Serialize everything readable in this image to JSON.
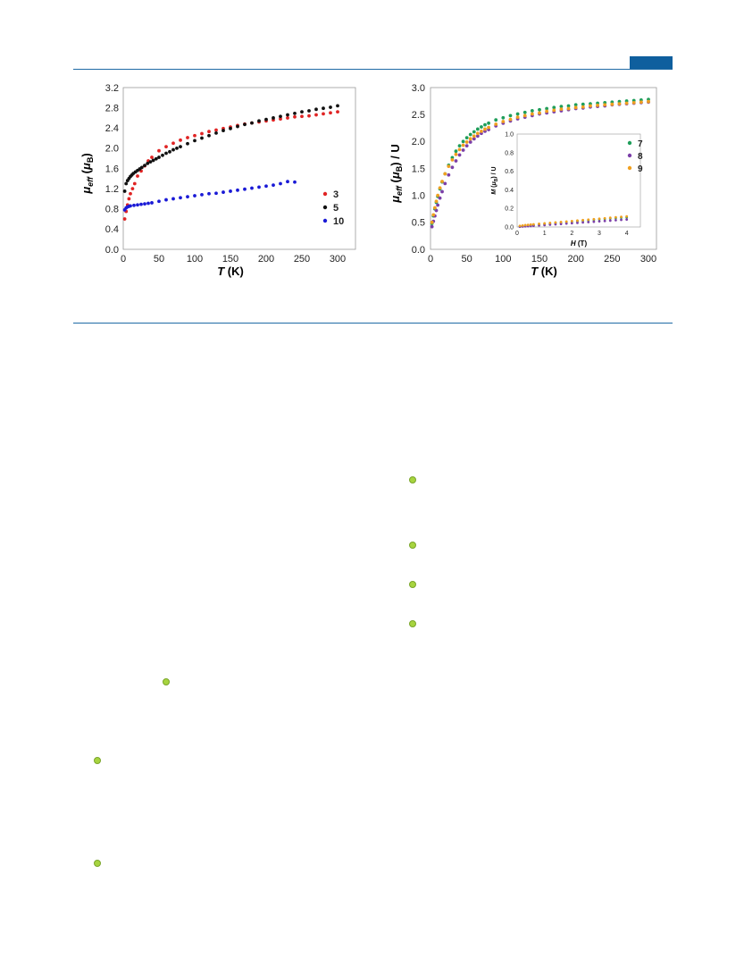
{
  "chart_data": [
    {
      "type": "scatter",
      "xlabel_var": "T",
      "xlabel_unit": "(K)",
      "ylabel_var": "μ",
      "ylabel_sub": "eff",
      "ylabel_unit_open": "(",
      "ylabel_unit_var": "μ",
      "ylabel_unit_sub": "B",
      "ylabel_unit_close": ")",
      "xlim": [
        0,
        300
      ],
      "ylim": [
        0,
        3.2
      ],
      "xticks": [
        "0",
        "50",
        "100",
        "150",
        "200",
        "250",
        "300"
      ],
      "yticks": [
        "0.0",
        "0.4",
        "0.8",
        "1.2",
        "1.6",
        "2.0",
        "2.4",
        "2.8",
        "3.2"
      ],
      "legend_position": "right-middle",
      "series": [
        {
          "name": "3",
          "color": "#e02424",
          "x": [
            2,
            4,
            6,
            8,
            10,
            13,
            16,
            20,
            25,
            30,
            35,
            40,
            50,
            60,
            70,
            80,
            90,
            100,
            110,
            120,
            130,
            140,
            150,
            160,
            170,
            180,
            190,
            200,
            210,
            220,
            230,
            240,
            250,
            260,
            270,
            280,
            290,
            300
          ],
          "y": [
            0.6,
            0.75,
            0.88,
            1.0,
            1.1,
            1.2,
            1.3,
            1.45,
            1.55,
            1.65,
            1.75,
            1.82,
            1.95,
            2.03,
            2.1,
            2.16,
            2.21,
            2.25,
            2.29,
            2.33,
            2.36,
            2.39,
            2.42,
            2.45,
            2.48,
            2.5,
            2.52,
            2.54,
            2.56,
            2.58,
            2.6,
            2.62,
            2.63,
            2.64,
            2.66,
            2.68,
            2.7,
            2.72
          ]
        },
        {
          "name": "5",
          "color": "#111111",
          "x": [
            2,
            4,
            6,
            8,
            10,
            12,
            14,
            17,
            20,
            23,
            26,
            30,
            34,
            38,
            42,
            46,
            50,
            55,
            60,
            65,
            70,
            75,
            80,
            90,
            100,
            110,
            120,
            130,
            140,
            150,
            160,
            170,
            180,
            190,
            200,
            210,
            220,
            230,
            240,
            250,
            260,
            270,
            280,
            290,
            300
          ],
          "y": [
            1.15,
            1.3,
            1.36,
            1.4,
            1.44,
            1.47,
            1.5,
            1.53,
            1.56,
            1.59,
            1.62,
            1.66,
            1.7,
            1.73,
            1.76,
            1.79,
            1.82,
            1.86,
            1.9,
            1.93,
            1.97,
            2.0,
            2.03,
            2.09,
            2.15,
            2.2,
            2.25,
            2.3,
            2.35,
            2.39,
            2.43,
            2.47,
            2.5,
            2.54,
            2.57,
            2.6,
            2.63,
            2.66,
            2.69,
            2.72,
            2.74,
            2.77,
            2.79,
            2.81,
            2.84
          ]
        },
        {
          "name": "10",
          "color": "#1a1ad6",
          "x": [
            2,
            4,
            6,
            8,
            10,
            15,
            20,
            25,
            30,
            35,
            40,
            50,
            60,
            70,
            80,
            90,
            100,
            110,
            120,
            130,
            140,
            150,
            160,
            170,
            180,
            190,
            200,
            210,
            220,
            230,
            240
          ],
          "y": [
            0.78,
            0.82,
            0.84,
            0.85,
            0.86,
            0.87,
            0.88,
            0.89,
            0.9,
            0.91,
            0.92,
            0.95,
            0.98,
            1.0,
            1.02,
            1.04,
            1.06,
            1.08,
            1.1,
            1.11,
            1.13,
            1.15,
            1.17,
            1.19,
            1.21,
            1.23,
            1.25,
            1.27,
            1.3,
            1.34,
            1.33
          ]
        }
      ]
    },
    {
      "type": "scatter",
      "xlabel_var": "T",
      "xlabel_unit": "(K)",
      "ylabel_var": "μ",
      "ylabel_sub": "eff",
      "ylabel_unit_open": "(",
      "ylabel_unit_var": "μ",
      "ylabel_unit_sub": "B",
      "ylabel_unit_close": ") / U",
      "xlim": [
        0,
        300
      ],
      "ylim": [
        0,
        3.0
      ],
      "xticks": [
        "0",
        "50",
        "100",
        "150",
        "200",
        "250",
        "300"
      ],
      "yticks": [
        "0.0",
        "0.5",
        "1.0",
        "1.5",
        "2.0",
        "2.5",
        "3.0"
      ],
      "legend_position": "inset top-right",
      "series": [
        {
          "name": "7",
          "color": "#1f9e5a",
          "x": [
            2,
            4,
            6,
            8,
            10,
            13,
            16,
            20,
            25,
            30,
            35,
            40,
            45,
            50,
            55,
            60,
            65,
            70,
            75,
            80,
            90,
            100,
            110,
            120,
            130,
            140,
            150,
            160,
            170,
            180,
            190,
            200,
            210,
            220,
            230,
            240,
            250,
            260,
            270,
            280,
            290,
            300
          ],
          "y": [
            0.48,
            0.62,
            0.75,
            0.87,
            0.98,
            1.12,
            1.25,
            1.4,
            1.56,
            1.7,
            1.82,
            1.92,
            2.0,
            2.07,
            2.13,
            2.18,
            2.23,
            2.27,
            2.31,
            2.34,
            2.4,
            2.44,
            2.48,
            2.51,
            2.54,
            2.57,
            2.59,
            2.61,
            2.63,
            2.65,
            2.66,
            2.68,
            2.69,
            2.7,
            2.71,
            2.72,
            2.73,
            2.74,
            2.75,
            2.76,
            2.77,
            2.78
          ]
        },
        {
          "name": "8",
          "color": "#7b3fa8",
          "x": [
            2,
            4,
            6,
            8,
            10,
            13,
            16,
            20,
            25,
            30,
            35,
            40,
            45,
            50,
            55,
            60,
            65,
            70,
            75,
            80,
            90,
            100,
            110,
            120,
            130,
            140,
            150,
            160,
            170,
            180,
            190,
            200,
            210,
            220,
            230,
            240,
            250,
            260,
            270,
            280,
            290,
            300
          ],
          "y": [
            0.42,
            0.52,
            0.62,
            0.72,
            0.82,
            0.95,
            1.07,
            1.22,
            1.38,
            1.52,
            1.64,
            1.75,
            1.84,
            1.92,
            1.99,
            2.05,
            2.1,
            2.15,
            2.19,
            2.22,
            2.29,
            2.34,
            2.38,
            2.42,
            2.45,
            2.48,
            2.51,
            2.53,
            2.55,
            2.57,
            2.59,
            2.61,
            2.62,
            2.64,
            2.65,
            2.66,
            2.68,
            2.69,
            2.7,
            2.71,
            2.72,
            2.73
          ]
        },
        {
          "name": "9",
          "color": "#f0a020",
          "x": [
            2,
            4,
            6,
            8,
            10,
            13,
            16,
            20,
            25,
            30,
            35,
            40,
            45,
            50,
            55,
            60,
            65,
            70,
            75,
            80,
            90,
            100,
            110,
            120,
            130,
            140,
            150,
            160,
            170,
            180,
            190,
            200,
            210,
            220,
            230,
            240,
            250,
            260,
            270,
            280,
            290,
            300
          ],
          "y": [
            0.5,
            0.64,
            0.77,
            0.89,
            1.0,
            1.14,
            1.26,
            1.4,
            1.54,
            1.66,
            1.76,
            1.85,
            1.93,
            1.99,
            2.05,
            2.1,
            2.15,
            2.19,
            2.23,
            2.26,
            2.32,
            2.37,
            2.41,
            2.45,
            2.48,
            2.51,
            2.53,
            2.56,
            2.58,
            2.6,
            2.61,
            2.63,
            2.64,
            2.66,
            2.67,
            2.68,
            2.69,
            2.7,
            2.71,
            2.72,
            2.73,
            2.74
          ]
        }
      ]
    },
    {
      "type": "scatter",
      "inset": true,
      "xlabel_var": "H",
      "xlabel_unit": "(T)",
      "ylabel_var": "M",
      "ylabel_unit_open": "(",
      "ylabel_unit_var": "μ",
      "ylabel_unit_sub": "B",
      "ylabel_unit_close": ") / U",
      "xlim": [
        0,
        4.5
      ],
      "ylim": [
        0,
        1.0
      ],
      "xticks": [
        "0",
        "1",
        "2",
        "3",
        "4"
      ],
      "yticks": [
        "0.0",
        "0.2",
        "0.4",
        "0.6",
        "0.8",
        "1.0"
      ],
      "series": [
        {
          "name": "7",
          "color": "#1f9e5a",
          "x": [
            0.1,
            0.2,
            0.3,
            0.4,
            0.5,
            0.6,
            0.8,
            1.0,
            1.2,
            1.4,
            1.6,
            1.8,
            2.0,
            2.2,
            2.4,
            2.6,
            2.8,
            3.0,
            3.2,
            3.4,
            3.6,
            3.8,
            4.0
          ],
          "y": [
            0.005,
            0.008,
            0.011,
            0.014,
            0.017,
            0.02,
            0.026,
            0.032,
            0.037,
            0.043,
            0.048,
            0.053,
            0.058,
            0.063,
            0.068,
            0.073,
            0.078,
            0.083,
            0.088,
            0.092,
            0.097,
            0.101,
            0.105
          ]
        },
        {
          "name": "8",
          "color": "#7b3fa8",
          "x": [
            0.1,
            0.2,
            0.3,
            0.4,
            0.5,
            0.6,
            0.8,
            1.0,
            1.2,
            1.4,
            1.6,
            1.8,
            2.0,
            2.2,
            2.4,
            2.6,
            2.8,
            3.0,
            3.2,
            3.4,
            3.6,
            3.8,
            4.0
          ],
          "y": [
            0.003,
            0.005,
            0.007,
            0.009,
            0.011,
            0.013,
            0.017,
            0.021,
            0.025,
            0.029,
            0.033,
            0.037,
            0.041,
            0.045,
            0.049,
            0.053,
            0.057,
            0.061,
            0.065,
            0.069,
            0.073,
            0.077,
            0.081
          ]
        },
        {
          "name": "9",
          "color": "#f0a020",
          "x": [
            0.1,
            0.2,
            0.3,
            0.4,
            0.5,
            0.6,
            0.8,
            1.0,
            1.2,
            1.4,
            1.6,
            1.8,
            2.0,
            2.2,
            2.4,
            2.6,
            2.8,
            3.0,
            3.2,
            3.4,
            3.6,
            3.8,
            4.0
          ],
          "y": [
            0.012,
            0.016,
            0.02,
            0.023,
            0.026,
            0.029,
            0.034,
            0.039,
            0.044,
            0.049,
            0.054,
            0.059,
            0.064,
            0.069,
            0.074,
            0.079,
            0.084,
            0.089,
            0.094,
            0.099,
            0.104,
            0.109,
            0.114
          ]
        }
      ]
    }
  ],
  "style": {
    "header_rule_color": "#1f6aa5",
    "header_tab_color": "#0f5f9e",
    "marker_color": "#a7d43f"
  }
}
